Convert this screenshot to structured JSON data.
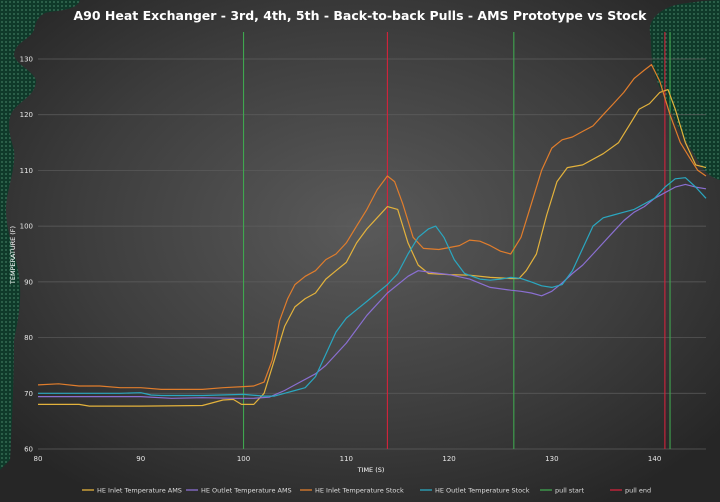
{
  "chart_data": {
    "type": "line",
    "title": "A90 Heat Exchanger - 3rd, 4th, 5th - Back-to-back Pulls - AMS Prototype vs Stock",
    "xlabel": "TIME (S)",
    "ylabel": "TEMPERATURE (F)",
    "xlim": [
      80,
      145
    ],
    "ylim": [
      60,
      130
    ],
    "x_ticks": [
      80,
      90,
      100,
      110,
      120,
      130,
      140
    ],
    "y_ticks": [
      60,
      70,
      80,
      90,
      100,
      110,
      120,
      130
    ],
    "grid": "horizontal",
    "legend_position": "bottom",
    "series": [
      {
        "name": "HE Inlet Temperature AMS",
        "color": "#e3b23c",
        "points": [
          [
            80,
            68
          ],
          [
            84,
            68
          ],
          [
            85,
            67.7
          ],
          [
            90,
            67.7
          ],
          [
            96,
            67.8
          ],
          [
            98,
            68.8
          ],
          [
            99,
            68.9
          ],
          [
            99.8,
            68
          ],
          [
            101,
            68
          ],
          [
            102,
            70
          ],
          [
            103,
            76
          ],
          [
            104,
            82
          ],
          [
            105,
            85.5
          ],
          [
            106,
            87
          ],
          [
            107,
            88
          ],
          [
            108,
            90.5
          ],
          [
            109,
            92
          ],
          [
            110,
            93.5
          ],
          [
            111,
            97
          ],
          [
            112,
            99.5
          ],
          [
            113,
            101.5
          ],
          [
            114,
            103.5
          ],
          [
            115,
            103
          ],
          [
            116,
            97
          ],
          [
            117,
            93
          ],
          [
            118,
            91.5
          ],
          [
            120,
            91.3
          ],
          [
            122,
            91.2
          ],
          [
            124,
            90.8
          ],
          [
            126,
            90.6
          ],
          [
            126.8,
            90.6
          ],
          [
            127.5,
            92
          ],
          [
            128.5,
            95
          ],
          [
            129.5,
            102
          ],
          [
            130.5,
            108
          ],
          [
            131.5,
            110.5
          ],
          [
            133,
            111
          ],
          [
            135,
            113
          ],
          [
            136.5,
            115
          ],
          [
            137.5,
            118
          ],
          [
            138.5,
            121
          ],
          [
            139.5,
            122
          ],
          [
            140.5,
            124
          ],
          [
            141.3,
            124.5
          ],
          [
            142,
            121
          ],
          [
            143,
            115
          ],
          [
            144,
            111
          ],
          [
            145,
            110.5
          ]
        ]
      },
      {
        "name": "HE Outlet Temperature AMS",
        "color": "#8a6fd1",
        "points": [
          [
            80,
            69.4
          ],
          [
            86,
            69.4
          ],
          [
            90,
            69.4
          ],
          [
            93,
            69.1
          ],
          [
            96,
            69.2
          ],
          [
            99,
            69.1
          ],
          [
            101,
            69.1
          ],
          [
            102.5,
            69.3
          ],
          [
            104,
            70.5
          ],
          [
            105,
            71.5
          ],
          [
            107,
            73.5
          ],
          [
            108,
            75
          ],
          [
            110,
            79
          ],
          [
            112,
            84
          ],
          [
            114,
            88
          ],
          [
            116,
            91
          ],
          [
            117,
            92
          ],
          [
            120,
            91.3
          ],
          [
            122,
            90.5
          ],
          [
            124,
            89
          ],
          [
            126,
            88.5
          ],
          [
            127,
            88.3
          ],
          [
            128,
            88
          ],
          [
            129,
            87.5
          ],
          [
            130,
            88.3
          ],
          [
            131,
            89.8
          ],
          [
            132,
            91.5
          ],
          [
            133,
            93
          ],
          [
            134,
            95
          ],
          [
            135,
            97
          ],
          [
            136,
            99
          ],
          [
            137,
            101
          ],
          [
            138,
            102.5
          ],
          [
            139,
            103.5
          ],
          [
            140,
            105
          ],
          [
            141,
            106
          ],
          [
            142,
            107
          ],
          [
            143,
            107.5
          ],
          [
            144,
            107
          ],
          [
            145,
            106.7
          ]
        ]
      },
      {
        "name": "HE Inlet Temperature Stock",
        "color": "#e07d2c",
        "points": [
          [
            80,
            71.5
          ],
          [
            82,
            71.7
          ],
          [
            84,
            71.3
          ],
          [
            86,
            71.3
          ],
          [
            88,
            71
          ],
          [
            90,
            71
          ],
          [
            92,
            70.7
          ],
          [
            94,
            70.7
          ],
          [
            96,
            70.7
          ],
          [
            98,
            71
          ],
          [
            100,
            71.2
          ],
          [
            101,
            71.3
          ],
          [
            102,
            72
          ],
          [
            102.8,
            76
          ],
          [
            103.5,
            83
          ],
          [
            104.3,
            87
          ],
          [
            105,
            89.5
          ],
          [
            106,
            91
          ],
          [
            107,
            92
          ],
          [
            108,
            94
          ],
          [
            109,
            95
          ],
          [
            110,
            97
          ],
          [
            111,
            100
          ],
          [
            112,
            103
          ],
          [
            113,
            106.5
          ],
          [
            114,
            109
          ],
          [
            114.7,
            108
          ],
          [
            115.5,
            104
          ],
          [
            116.5,
            98
          ],
          [
            117.5,
            96
          ],
          [
            119,
            95.8
          ],
          [
            121,
            96.5
          ],
          [
            122,
            97.5
          ],
          [
            123,
            97.3
          ],
          [
            124,
            96.5
          ],
          [
            125,
            95.5
          ],
          [
            126,
            95
          ],
          [
            127,
            98
          ],
          [
            128,
            104
          ],
          [
            129,
            110
          ],
          [
            130,
            114
          ],
          [
            131,
            115.5
          ],
          [
            132,
            116
          ],
          [
            133,
            117
          ],
          [
            134,
            118
          ],
          [
            135,
            120
          ],
          [
            136,
            122
          ],
          [
            137,
            124
          ],
          [
            138,
            126.5
          ],
          [
            139,
            128
          ],
          [
            139.7,
            129
          ],
          [
            140.5,
            126
          ],
          [
            141.5,
            120
          ],
          [
            142.5,
            115
          ],
          [
            143.5,
            112
          ],
          [
            144.2,
            110
          ],
          [
            145,
            109
          ]
        ]
      },
      {
        "name": "HE Outlet Temperature Stock",
        "color": "#2aa7c0",
        "points": [
          [
            80,
            70
          ],
          [
            85,
            70
          ],
          [
            88,
            70
          ],
          [
            90,
            70.1
          ],
          [
            91,
            69.7
          ],
          [
            92,
            69.6
          ],
          [
            96,
            69.6
          ],
          [
            100,
            69.8
          ],
          [
            102,
            69.5
          ],
          [
            103,
            69.5
          ],
          [
            104,
            70
          ],
          [
            105,
            70.5
          ],
          [
            106,
            71
          ],
          [
            107,
            73
          ],
          [
            108,
            77
          ],
          [
            109,
            81
          ],
          [
            110,
            83.5
          ],
          [
            111,
            85
          ],
          [
            112,
            86.5
          ],
          [
            113,
            88
          ],
          [
            114,
            89.5
          ],
          [
            115,
            91.5
          ],
          [
            116,
            95
          ],
          [
            117,
            98
          ],
          [
            118,
            99.5
          ],
          [
            118.7,
            100
          ],
          [
            119.5,
            98
          ],
          [
            120.5,
            94
          ],
          [
            121.5,
            91.5
          ],
          [
            123,
            90.5
          ],
          [
            124,
            90.3
          ],
          [
            125,
            90.5
          ],
          [
            126,
            90.8
          ],
          [
            127,
            90.6
          ],
          [
            128,
            90
          ],
          [
            129,
            89.3
          ],
          [
            130,
            89
          ],
          [
            131,
            89.5
          ],
          [
            132,
            92
          ],
          [
            133,
            96
          ],
          [
            134,
            100
          ],
          [
            135,
            101.5
          ],
          [
            136,
            102
          ],
          [
            137,
            102.5
          ],
          [
            138,
            103
          ],
          [
            139,
            104
          ],
          [
            140,
            105
          ],
          [
            141,
            107
          ],
          [
            142,
            108.5
          ],
          [
            143,
            108.7
          ],
          [
            144,
            107
          ],
          [
            145,
            105
          ]
        ]
      }
    ],
    "markers": [
      {
        "name": "pull start",
        "color": "#3fa64f",
        "x": [
          100,
          126.3,
          141.5
        ]
      },
      {
        "name": "pull end",
        "color": "#d3233b",
        "x": [
          114,
          141
        ]
      }
    ]
  }
}
